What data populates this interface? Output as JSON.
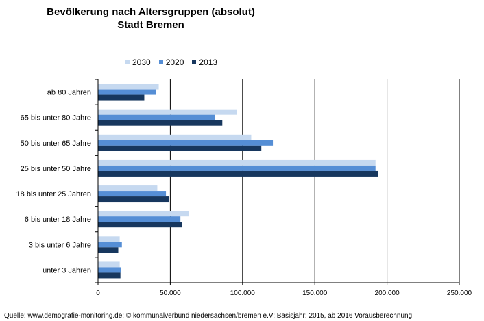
{
  "chart_data": {
    "type": "bar",
    "orientation": "horizontal",
    "title": "Bevölkerung nach Altersgruppen (absolut)",
    "subtitle": "Stadt Bremen",
    "categories": [
      "ab 80 Jahren",
      "65 bis unter 80 Jahre",
      "50 bis unter 65 Jahre",
      "25 bis unter 50 Jahre",
      "18 bis unter 25 Jahren",
      "6 bis unter 18 Jahre",
      "3 bis unter 6 Jahre",
      "unter 3 Jahren"
    ],
    "series": [
      {
        "name": "2030",
        "color": "#c6d9f0",
        "values": [
          42000,
          96000,
          106000,
          192000,
          41000,
          63000,
          15000,
          15000
        ]
      },
      {
        "name": "2020",
        "color": "#558ed5",
        "values": [
          40000,
          81000,
          121000,
          192000,
          47000,
          57000,
          16500,
          16000
        ]
      },
      {
        "name": "2013",
        "color": "#17375e",
        "values": [
          32000,
          86000,
          113000,
          194000,
          49000,
          58000,
          14000,
          15500
        ]
      }
    ],
    "xlim": [
      0,
      250000
    ],
    "xticks": [
      "0",
      "50.000",
      "100.000",
      "150.000",
      "200.000",
      "250.000"
    ],
    "xtick_values": [
      0,
      50000,
      100000,
      150000,
      200000,
      250000
    ],
    "grid": "vertical",
    "legend_position": "top"
  },
  "source": "Quelle:  www.demografie-monitoring.de; © kommunalverbund niedersachsen/bremen e.V; Basisjahr: 2015, ab 2016 Vorausberechnung."
}
